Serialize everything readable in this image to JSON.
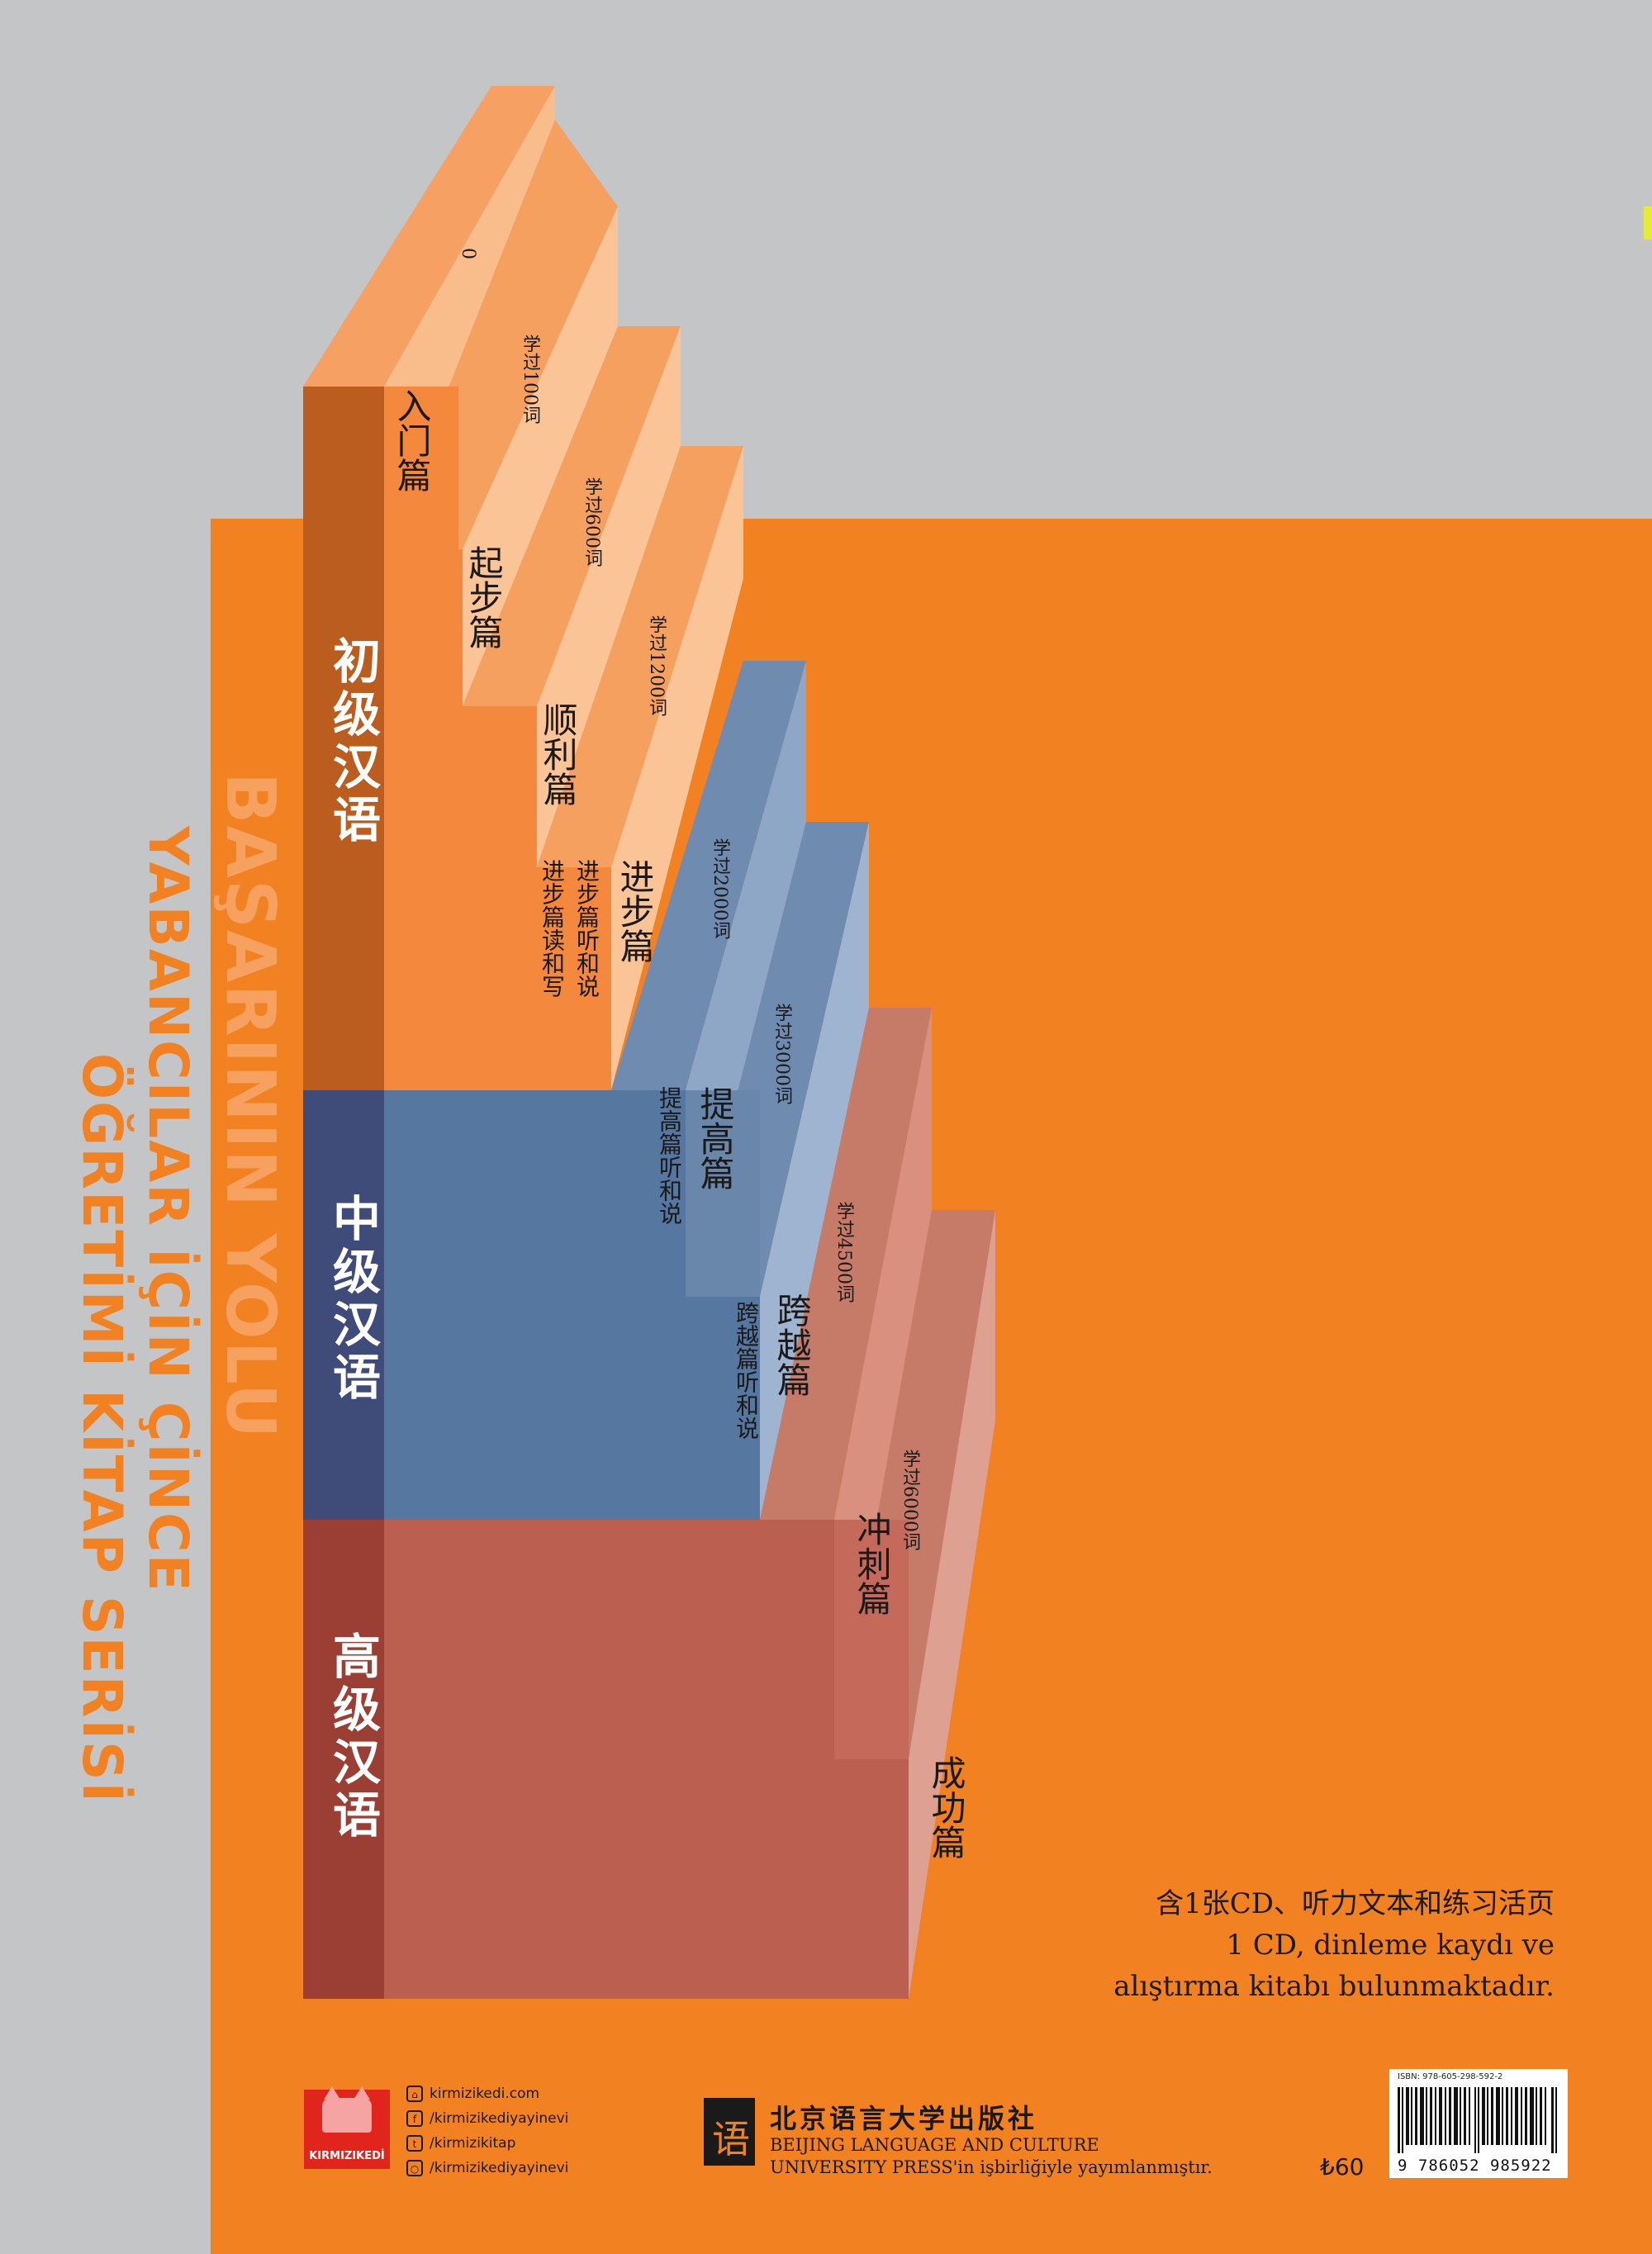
{
  "colors": {
    "background_gray": "#c4c5c7",
    "orange": "#f28122",
    "beginner_tab": "#bb5d1f",
    "intermediate_tab": "#3f4c7a",
    "advanced_tab": "#9b3e33"
  },
  "side_title": {
    "main": "BAŞARININ YOLU",
    "line1": "YABANCILAR İÇİN ÇİNCE",
    "line2": "ÖĞRETİMİ KİTAP SERİSİ"
  },
  "levels": [
    {
      "label": "初级汉语"
    },
    {
      "label": "中级汉语"
    },
    {
      "label": "高级汉语"
    }
  ],
  "steps": [
    {
      "word_count": "0",
      "title": "入门篇"
    },
    {
      "word_count": "学过100词",
      "title": "起步篇"
    },
    {
      "word_count": "学过600词",
      "title": "顺利篇"
    },
    {
      "word_count": "学过1200词",
      "title": "进步篇",
      "sub1": "进步篇听和说",
      "sub2": "进步篇读和写"
    },
    {
      "word_count": "学过2000词",
      "title": "提高篇",
      "sub1": "提高篇听和说"
    },
    {
      "word_count": "学过3000词",
      "title": "跨越篇",
      "sub1": "跨越篇听和说"
    },
    {
      "word_count": "学过4500词",
      "title": "冲刺篇"
    },
    {
      "word_count": "学过6000词",
      "title": "成功篇"
    }
  ],
  "cd_info": {
    "line1": "含1张CD、听力文本和练习活页",
    "line2": "1 CD, dinleme kaydı ve",
    "line3": "alıştırma kitabı bulunmaktadır."
  },
  "publisher": {
    "logo_text": "KIRMIZIKEDİ",
    "social": [
      {
        "icon": "globe-icon",
        "text": "kirmizikedi.com"
      },
      {
        "icon": "facebook-icon",
        "text": "/kirmizikediyayinevi"
      },
      {
        "icon": "twitter-icon",
        "text": "/kirmizikitap"
      },
      {
        "icon": "instagram-icon",
        "text": "/kirmizikediyayinevi"
      }
    ]
  },
  "blcu": {
    "name_cn": "北京语言大学出版社",
    "name_en1": "BEIJING LANGUAGE AND CULTURE",
    "name_en2": "UNIVERSITY PRESS'in işbirliğiyle yayımlanmıştır."
  },
  "price": "₺60",
  "barcode": {
    "isbn_line": "ISBN: 978-605-298-592-2",
    "number": "9 786052 985922"
  }
}
